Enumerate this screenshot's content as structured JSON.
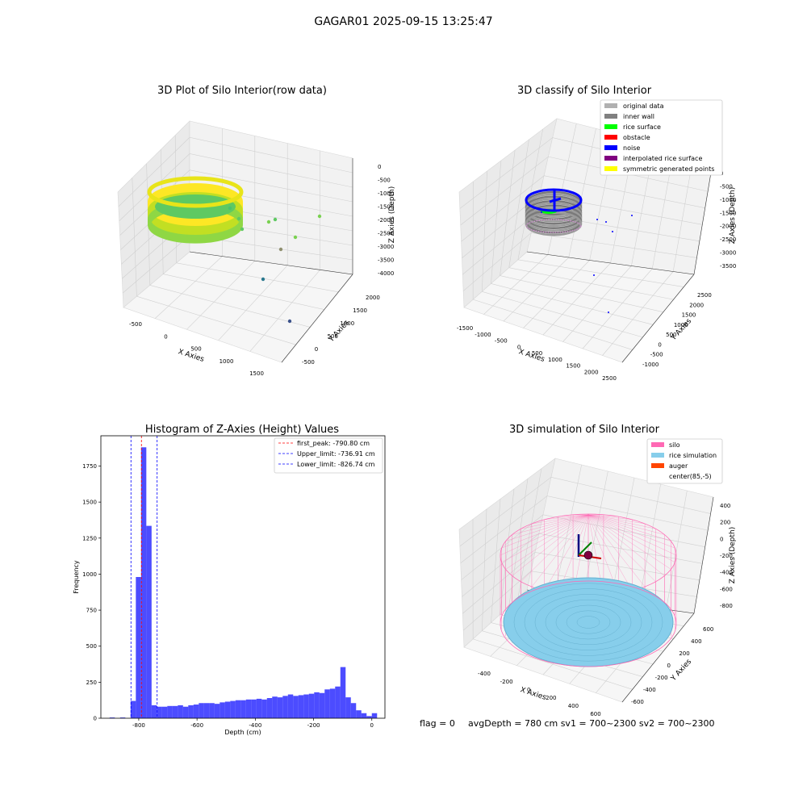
{
  "suptitle": "GAGAR01 2025-09-15 13:25:47",
  "panel1": {
    "title": "3D Plot of Silo Interior(row data)",
    "xlabel": "X Axies",
    "ylabel": "Y Axies",
    "zlabel": "Z Axies (Depth)",
    "xticks": [
      "-500",
      "0",
      "500",
      "1000",
      "1500"
    ],
    "yticks": [
      "-500",
      "0",
      "500",
      "1000",
      "1500",
      "2000"
    ],
    "zticks": [
      "0",
      "-500",
      "-1000",
      "-1500",
      "-2000",
      "-2500",
      "-3000",
      "-3500",
      "-4000"
    ],
    "colormap": [
      "#440154",
      "#21918c",
      "#5ec962",
      "#fde725"
    ]
  },
  "panel2": {
    "title": "3D classify of Silo Interior",
    "xlabel": "X Axies",
    "ylabel": "Y Axies",
    "zlabel": "Z Axies (Depth)",
    "xticks": [
      "-1500",
      "-1000",
      "-500",
      "0",
      "500",
      "1000",
      "1500",
      "2000",
      "2500"
    ],
    "yticks": [
      "-1000",
      "-500",
      "0",
      "500",
      "1000",
      "1500",
      "2000",
      "2500"
    ],
    "zticks": [
      "0",
      "-500",
      "-1000",
      "-1500",
      "-2000",
      "-2500",
      "-3000",
      "-3500"
    ],
    "legend": [
      {
        "label": "original data",
        "color": "#b0b0b0"
      },
      {
        "label": "inner wall",
        "color": "#808080"
      },
      {
        "label": "rice surface",
        "color": "#00ff00"
      },
      {
        "label": "obstacle",
        "color": "#ff0000"
      },
      {
        "label": "noise",
        "color": "#0000ff"
      },
      {
        "label": "interpolated rice surface",
        "color": "#800080"
      },
      {
        "label": "symmetric generated points",
        "color": "#ffff00"
      }
    ]
  },
  "panel3": {
    "title": "3D simulation of Silo Interior",
    "xlabel": "X Axies",
    "ylabel": "Y Axies",
    "zlabel": "Z Axies (Depth)",
    "xticks": [
      "-400",
      "-200",
      "0",
      "200",
      "400",
      "600"
    ],
    "yticks": [
      "-600",
      "-400",
      "-200",
      "0",
      "200",
      "400",
      "600"
    ],
    "zticks": [
      "400",
      "200",
      "0",
      "-200",
      "-400",
      "-600",
      "-800"
    ],
    "legend": [
      {
        "label": "silo",
        "color": "#ff69b4"
      },
      {
        "label": "rice simulation",
        "color": "#87ceeb"
      },
      {
        "label": "auger",
        "color": "#ff4500"
      },
      {
        "label": "center(85,-5)",
        "color": ""
      }
    ]
  },
  "footer": {
    "flag": "flag = 0",
    "avg": "avgDepth = 780 cm  sv1 = 700~2300  sv2 = 700~2300"
  },
  "chart_data": {
    "type": "bar",
    "title": "Histogram of Z-Axies (Height) Values",
    "xlabel": "Depth (cm)",
    "ylabel": "Frequency",
    "xlim": [
      -930,
      45
    ],
    "ylim": [
      0,
      1960
    ],
    "xticks": [
      -800,
      -600,
      -400,
      -200,
      0
    ],
    "yticks": [
      0,
      250,
      500,
      750,
      1000,
      1250,
      1500,
      1750
    ],
    "bin_width": 18,
    "bins": [
      {
        "x0": -900,
        "value": 5
      },
      {
        "x0": -864,
        "value": 5
      },
      {
        "x0": -828,
        "value": 120
      },
      {
        "x0": -810,
        "value": 980
      },
      {
        "x0": -792,
        "value": 1880
      },
      {
        "x0": -774,
        "value": 1335
      },
      {
        "x0": -756,
        "value": 90
      },
      {
        "x0": -738,
        "value": 80
      },
      {
        "x0": -720,
        "value": 80
      },
      {
        "x0": -702,
        "value": 85
      },
      {
        "x0": -684,
        "value": 85
      },
      {
        "x0": -666,
        "value": 90
      },
      {
        "x0": -648,
        "value": 80
      },
      {
        "x0": -630,
        "value": 90
      },
      {
        "x0": -612,
        "value": 95
      },
      {
        "x0": -594,
        "value": 105
      },
      {
        "x0": -576,
        "value": 105
      },
      {
        "x0": -558,
        "value": 105
      },
      {
        "x0": -540,
        "value": 100
      },
      {
        "x0": -522,
        "value": 110
      },
      {
        "x0": -504,
        "value": 115
      },
      {
        "x0": -486,
        "value": 120
      },
      {
        "x0": -468,
        "value": 125
      },
      {
        "x0": -450,
        "value": 125
      },
      {
        "x0": -432,
        "value": 130
      },
      {
        "x0": -414,
        "value": 130
      },
      {
        "x0": -396,
        "value": 135
      },
      {
        "x0": -378,
        "value": 130
      },
      {
        "x0": -360,
        "value": 140
      },
      {
        "x0": -342,
        "value": 150
      },
      {
        "x0": -324,
        "value": 145
      },
      {
        "x0": -306,
        "value": 155
      },
      {
        "x0": -288,
        "value": 165
      },
      {
        "x0": -270,
        "value": 155
      },
      {
        "x0": -252,
        "value": 160
      },
      {
        "x0": -234,
        "value": 165
      },
      {
        "x0": -216,
        "value": 170
      },
      {
        "x0": -198,
        "value": 180
      },
      {
        "x0": -180,
        "value": 175
      },
      {
        "x0": -162,
        "value": 200
      },
      {
        "x0": -144,
        "value": 205
      },
      {
        "x0": -126,
        "value": 220
      },
      {
        "x0": -108,
        "value": 355
      },
      {
        "x0": -90,
        "value": 145
      },
      {
        "x0": -72,
        "value": 105
      },
      {
        "x0": -54,
        "value": 55
      },
      {
        "x0": -36,
        "value": 35
      },
      {
        "x0": -18,
        "value": 15
      },
      {
        "x0": 0,
        "value": 35
      }
    ],
    "vlines": [
      {
        "label": "first_peak: -790.80 cm",
        "x": -790.8,
        "color": "#ff0000"
      },
      {
        "label": "Upper_limit: -736.91 cm",
        "x": -736.91,
        "color": "#0000ff"
      },
      {
        "label": "Lower_limit: -826.74 cm",
        "x": -826.74,
        "color": "#0000ff"
      }
    ],
    "bar_color": "#0000ff",
    "legend_position": "top-right"
  }
}
